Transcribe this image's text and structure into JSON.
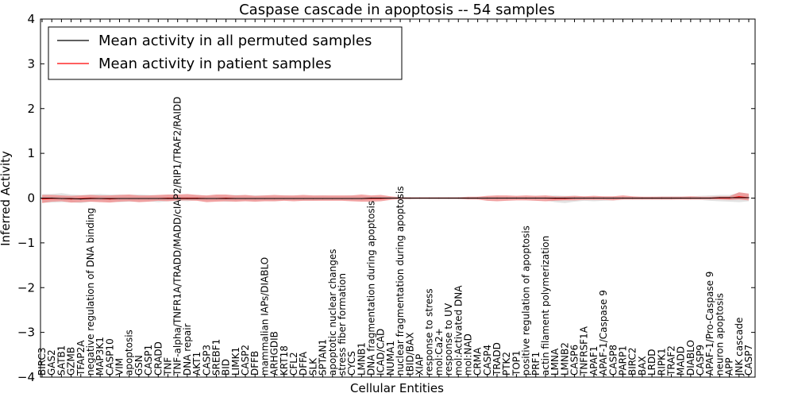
{
  "chart_data": {
    "type": "line",
    "title": "Caspase cascade in apoptosis -- 54 samples",
    "xlabel": "Cellular Entities",
    "ylabel": "Inferred Activity",
    "ylim": [
      -4,
      4
    ],
    "yticks": [
      -4,
      -3,
      -2,
      -1,
      0,
      1,
      2,
      3,
      4
    ],
    "grid": false,
    "legend_position": "top-left",
    "colors": {
      "permuted_line": "#000000",
      "permuted_band": "#d9d9d9",
      "patient_line": "#ff0000",
      "patient_band": "#f08080"
    },
    "categories": [
      "BIRC3",
      "GAS2",
      "SATB1",
      "GZMB",
      "TFAP2A",
      "negative regulation of DNA binding",
      "MAP3K1",
      "CASP10",
      "VIM",
      "apoptosis",
      "GSN",
      "CASP1",
      "CRADD",
      "TNF",
      "TNF-alpha/TNFR1A/TRADD/MADD/cIAP2/RIP1/TRAF2/RAIDD",
      "DNA repair",
      "AKT1",
      "CASP3",
      "SREBF1",
      "BID",
      "LIMK1",
      "CASP2",
      "DFFB",
      "mammalian IAPs/DIABLO",
      "ARHGDIB",
      "KRT18",
      "CFL2",
      "DFFA",
      "SLK",
      "SPTAN1",
      "apoptotic nuclear changes",
      "stress fiber formation",
      "CYCS",
      "LMNB1",
      "DNA fragmentation during apoptosis",
      "ICAD/CAD",
      "NUMA1",
      "nuclear fragmentation during apoptosis",
      "tBID/BAX",
      "XIAP",
      "response to stress",
      "mol:Ca2+",
      "response to UV",
      "mol:Activated DNA",
      "mol:NAD",
      "CRMA",
      "CASP4",
      "TRADD",
      "PTK2",
      "TOP1",
      "positive regulation of apoptosis",
      "PRF1",
      "actin filament polymerization",
      "LMNA",
      "LMNB2",
      "CASP6",
      "TNFRSF1A",
      "APAF1",
      "APAF-1/Caspase 9",
      "CASP8",
      "PARP1",
      "BIRC2",
      "BAX",
      "LRDD",
      "RIPK1",
      "TRAF2",
      "MADD",
      "DIABLO",
      "CASP9",
      "APAF-1/Pro-Caspase 9",
      "neuron apoptosis",
      "APP",
      "JNK cascade",
      "CASP7"
    ],
    "series": [
      {
        "name": "Mean activity in all permuted samples",
        "values": [
          0.0,
          0.0,
          -0.01,
          -0.01,
          -0.02,
          -0.01,
          -0.01,
          -0.01,
          -0.01,
          -0.01,
          -0.01,
          -0.01,
          -0.01,
          -0.01,
          -0.01,
          -0.01,
          -0.01,
          -0.01,
          -0.01,
          -0.01,
          -0.01,
          -0.01,
          -0.01,
          -0.01,
          -0.01,
          -0.01,
          -0.01,
          -0.01,
          -0.01,
          -0.01,
          -0.01,
          -0.01,
          -0.01,
          -0.01,
          0.0,
          0.0,
          0.0,
          0.0,
          0.0,
          0.0,
          0.0,
          0.0,
          0.0,
          0.0,
          0.0,
          0.0,
          0.0,
          0.0,
          0.0,
          0.0,
          0.0,
          0.0,
          0.0,
          0.0,
          0.0,
          0.0,
          0.0,
          0.0,
          0.0,
          0.0,
          0.0,
          0.0,
          0.0,
          0.0,
          0.0,
          0.0,
          0.0,
          0.0,
          0.0,
          0.0,
          0.01,
          0.01,
          0.01,
          0.01
        ],
        "band_low": [
          -0.1,
          -0.1,
          -0.09,
          -0.09,
          -0.11,
          -0.08,
          -0.07,
          -0.08,
          -0.09,
          -0.08,
          -0.08,
          -0.07,
          -0.09,
          -0.07,
          -0.06,
          -0.07,
          -0.05,
          -0.07,
          -0.06,
          -0.08,
          -0.07,
          -0.06,
          -0.07,
          -0.06,
          -0.07,
          -0.05,
          -0.05,
          -0.06,
          -0.06,
          -0.05,
          -0.05,
          -0.05,
          -0.06,
          -0.06,
          -0.04,
          -0.04,
          -0.03,
          -0.03,
          -0.03,
          -0.02,
          -0.02,
          -0.02,
          -0.02,
          -0.02,
          -0.02,
          -0.03,
          -0.05,
          -0.05,
          -0.04,
          -0.03,
          -0.04,
          -0.05,
          -0.05,
          -0.09,
          -0.11,
          -0.08,
          -0.06,
          -0.07,
          -0.06,
          -0.05,
          -0.04,
          -0.04,
          -0.04,
          -0.04,
          -0.04,
          -0.04,
          -0.03,
          -0.04,
          -0.04,
          -0.06,
          -0.07,
          -0.08,
          -0.09,
          -0.07
        ],
        "band_high": [
          0.09,
          0.09,
          0.11,
          0.08,
          0.07,
          0.08,
          0.09,
          0.08,
          0.08,
          0.07,
          0.08,
          0.07,
          0.06,
          0.07,
          0.06,
          0.05,
          0.07,
          0.05,
          0.06,
          0.06,
          0.07,
          0.06,
          0.06,
          0.06,
          0.05,
          0.06,
          0.05,
          0.05,
          0.05,
          0.06,
          0.05,
          0.05,
          0.06,
          0.04,
          0.04,
          0.04,
          0.03,
          0.03,
          0.02,
          0.02,
          0.02,
          0.02,
          0.02,
          0.02,
          0.02,
          0.03,
          0.04,
          0.05,
          0.04,
          0.04,
          0.04,
          0.05,
          0.05,
          0.06,
          0.05,
          0.05,
          0.04,
          0.04,
          0.04,
          0.04,
          0.04,
          0.03,
          0.03,
          0.03,
          0.04,
          0.04,
          0.04,
          0.04,
          0.05,
          0.06,
          0.07,
          0.07,
          0.12,
          0.1
        ]
      },
      {
        "name": "Mean activity in patient samples",
        "values": [
          -0.02,
          -0.01,
          -0.01,
          -0.02,
          -0.01,
          0.0,
          -0.01,
          -0.02,
          -0.01,
          -0.01,
          -0.01,
          -0.01,
          -0.01,
          0.0,
          0.0,
          0.0,
          0.0,
          -0.01,
          -0.01,
          0.0,
          -0.01,
          -0.01,
          -0.01,
          -0.01,
          -0.01,
          -0.01,
          -0.01,
          -0.01,
          -0.01,
          -0.01,
          -0.01,
          -0.01,
          -0.01,
          -0.01,
          -0.01,
          -0.01,
          0.0,
          0.0,
          0.0,
          0.0,
          0.0,
          0.0,
          0.0,
          0.0,
          0.0,
          0.0,
          0.0,
          0.0,
          0.0,
          0.0,
          0.0,
          0.0,
          0.0,
          -0.01,
          -0.01,
          0.0,
          0.0,
          0.0,
          0.0,
          0.0,
          0.0,
          0.0,
          0.0,
          0.0,
          0.0,
          0.0,
          0.0,
          0.0,
          0.0,
          0.0,
          0.0,
          0.0,
          0.03,
          0.01
        ],
        "band_low": [
          -0.11,
          -0.08,
          -0.07,
          -0.1,
          -0.09,
          -0.08,
          -0.09,
          -0.1,
          -0.08,
          -0.07,
          -0.09,
          -0.08,
          -0.06,
          -0.07,
          -0.05,
          -0.05,
          -0.06,
          -0.09,
          -0.08,
          -0.07,
          -0.08,
          -0.07,
          -0.08,
          -0.07,
          -0.07,
          -0.06,
          -0.07,
          -0.06,
          -0.06,
          -0.06,
          -0.06,
          -0.06,
          -0.07,
          -0.08,
          -0.08,
          -0.07,
          -0.04,
          -0.02,
          -0.02,
          -0.02,
          -0.02,
          -0.02,
          -0.02,
          -0.02,
          -0.03,
          -0.03,
          -0.06,
          -0.07,
          -0.06,
          -0.05,
          -0.05,
          -0.06,
          -0.07,
          -0.06,
          -0.05,
          -0.05,
          -0.04,
          -0.04,
          -0.04,
          -0.05,
          -0.03,
          -0.03,
          -0.03,
          -0.03,
          -0.03,
          -0.03,
          -0.03,
          -0.03,
          -0.03,
          -0.03,
          -0.03,
          -0.04,
          -0.03,
          -0.05
        ],
        "band_high": [
          0.07,
          0.07,
          0.06,
          0.05,
          0.06,
          0.07,
          0.06,
          0.06,
          0.07,
          0.08,
          0.06,
          0.06,
          0.07,
          0.08,
          0.08,
          0.09,
          0.07,
          0.06,
          0.08,
          0.08,
          0.06,
          0.07,
          0.05,
          0.06,
          0.07,
          0.06,
          0.06,
          0.07,
          0.06,
          0.06,
          0.06,
          0.06,
          0.06,
          0.08,
          0.06,
          0.07,
          0.04,
          0.02,
          0.02,
          0.02,
          0.02,
          0.02,
          0.02,
          0.02,
          0.03,
          0.03,
          0.05,
          0.06,
          0.06,
          0.05,
          0.06,
          0.05,
          0.06,
          0.04,
          0.04,
          0.05,
          0.04,
          0.05,
          0.04,
          0.04,
          0.06,
          0.04,
          0.03,
          0.03,
          0.03,
          0.03,
          0.03,
          0.04,
          0.03,
          0.03,
          0.04,
          0.04,
          0.13,
          0.1
        ]
      }
    ]
  }
}
